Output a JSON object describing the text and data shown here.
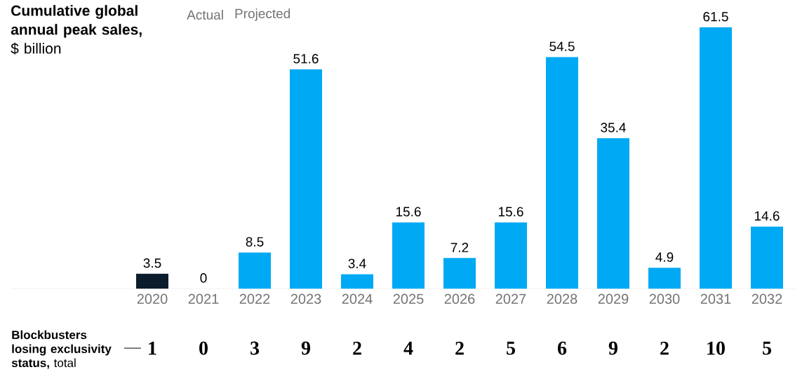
{
  "chart_data": {
    "type": "bar",
    "title": "**Cumulative global annual peak sales,** $ billion",
    "categories": [
      "2020",
      "2021",
      "2022",
      "2023",
      "2024",
      "2025",
      "2026",
      "2027",
      "2028",
      "2029",
      "2030",
      "2031",
      "2032"
    ],
    "values": [
      3.5,
      0,
      8.5,
      51.6,
      3.4,
      15.6,
      7.2,
      15.6,
      54.5,
      35.4,
      4.9,
      61.5,
      14.6
    ],
    "colors": [
      "#0b1d2c",
      "#0b1d2c",
      "#00a9f4",
      "#00a9f4",
      "#00a9f4",
      "#00a9f4",
      "#00a9f4",
      "#00a9f4",
      "#00a9f4",
      "#00a9f4",
      "#00a9f4",
      "#00a9f4",
      "#00a9f4"
    ],
    "data_labels": true,
    "annotations": [
      "Actual",
      "Projected",
      "**Blockbusters losing exclusivity status,** total",
      "1",
      "0",
      "3",
      "9",
      "2",
      "4",
      "2",
      "5",
      "6",
      "9",
      "2",
      "10",
      "5"
    ]
  }
}
